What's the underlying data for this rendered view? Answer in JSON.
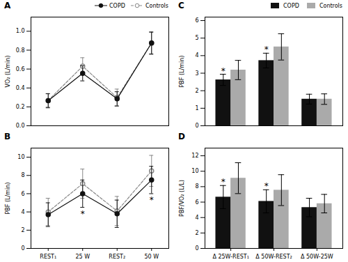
{
  "chart_data": [
    {
      "type": "line",
      "title": "A",
      "y_label": "VO₂ (L/min)",
      "categories": [
        null,
        null,
        null,
        null
      ],
      "series": [
        {
          "name": "COPD",
          "color": "#111111",
          "line_style": "solid",
          "marker": "circle",
          "values": [
            0.265,
            0.555,
            0.285,
            0.875
          ],
          "errors": [
            0.075,
            0.08,
            0.075,
            0.115
          ]
        },
        {
          "name": "Controls",
          "color": "#888888",
          "line_style": "dashed",
          "marker": "open_circle",
          "values": [
            0.268,
            0.63,
            0.298,
            0.875
          ],
          "errors": [
            0.07,
            0.09,
            0.09,
            0.12
          ]
        }
      ],
      "ylim": [
        0.0,
        1.15
      ],
      "yticks": [
        {
          "value": 0.0,
          "label": "0.0"
        },
        {
          "value": 0.2,
          "label": "0.2"
        },
        {
          "value": 0.4,
          "label": "0.4"
        },
        {
          "value": 0.6,
          "label": "0.6"
        },
        {
          "value": 0.8,
          "label": "0.8"
        },
        {
          "value": 1.0,
          "label": "1.0"
        }
      ],
      "legend": "right"
    },
    {
      "type": "line",
      "title": "B",
      "y_label": "PBF (L/min)",
      "categories": [
        "REST₁",
        "25 W",
        "REST₂",
        "50 W"
      ],
      "series": [
        {
          "name": "COPD",
          "color": "#111111",
          "line_style": "solid",
          "marker": "circle",
          "values": [
            3.7,
            6.0,
            3.8,
            7.5
          ],
          "errors": [
            1.3,
            1.5,
            1.5,
            1.5
          ]
        },
        {
          "name": "Controls",
          "color": "#888888",
          "line_style": "dashed",
          "marker": "open_circle",
          "values": [
            4.0,
            7.1,
            4.1,
            8.5
          ],
          "errors": [
            1.5,
            1.6,
            1.6,
            1.7
          ]
        }
      ],
      "annotations": [
        {
          "text": "*",
          "position": 1,
          "series": "COPD"
        },
        {
          "text": "*",
          "position": 3,
          "series": "COPD"
        }
      ],
      "ylim": [
        0,
        11
      ],
      "yticks": [
        0,
        2,
        4,
        6,
        8,
        10
      ]
    },
    {
      "type": "bar",
      "title": "C",
      "y_label": "PBF (L/min)",
      "categories": [
        null,
        null,
        null
      ],
      "series": [
        {
          "name": "COPD",
          "color": "#111111",
          "values": [
            2.62,
            3.72,
            1.52
          ],
          "errors": [
            0.32,
            0.42,
            0.28
          ]
        },
        {
          "name": "Controls",
          "color": "#aaaaaa",
          "values": [
            3.18,
            4.5,
            1.52
          ],
          "errors": [
            0.55,
            0.75,
            0.3
          ]
        }
      ],
      "annotations": [
        {
          "text": "*",
          "position": 0,
          "series": "COPD"
        },
        {
          "text": "*",
          "position": 1,
          "series": "COPD"
        }
      ],
      "ylim": [
        0,
        6.2
      ],
      "yticks": [
        0,
        1,
        2,
        3,
        4,
        5,
        6
      ],
      "legend": "upper right"
    },
    {
      "type": "bar",
      "title": "D",
      "y_label": "PBF/VO₂ (L/L)",
      "categories": [
        "Δ 25W-REST₁",
        "Δ 50W-REST₂",
        "Δ 50W-25W"
      ],
      "series": [
        {
          "name": "COPD",
          "color": "#111111",
          "values": [
            6.65,
            6.1,
            5.3
          ],
          "errors": [
            1.5,
            1.5,
            1.2
          ]
        },
        {
          "name": "Controls",
          "color": "#aaaaaa",
          "values": [
            9.1,
            7.55,
            5.8
          ],
          "errors": [
            2.0,
            2.0,
            1.2
          ]
        }
      ],
      "annotations": [
        {
          "text": "*",
          "position": 0,
          "series": "COPD"
        },
        {
          "text": "*",
          "position": 1,
          "series": "COPD"
        }
      ],
      "ylim": [
        0,
        13
      ],
      "yticks": [
        0,
        2,
        4,
        6,
        8,
        10,
        12
      ]
    }
  ]
}
